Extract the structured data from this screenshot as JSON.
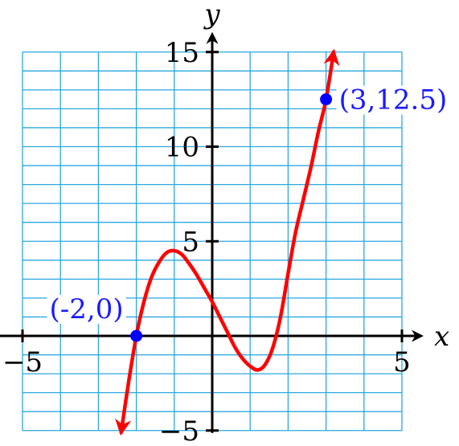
{
  "chart_data": {
    "type": "line",
    "xlabel": "x",
    "ylabel": "y",
    "xlim": [
      -5,
      5
    ],
    "ylim": [
      -5,
      15
    ],
    "x_tick_labels": [
      {
        "value": -5,
        "text": "−5"
      },
      {
        "value": 5,
        "text": "5"
      }
    ],
    "y_tick_labels": [
      {
        "value": -5,
        "text": "−5"
      },
      {
        "value": 5,
        "text": "5"
      },
      {
        "value": 10,
        "text": "10"
      },
      {
        "value": 15,
        "text": "15"
      }
    ],
    "grid": true,
    "grid_x_step": 1,
    "grid_y_step": 1,
    "curve": {
      "color": "#ff0000",
      "arrows": "both-ends",
      "x": [
        -2.4,
        -2.2,
        -2.0,
        -1.8,
        -1.6,
        -1.4,
        -1.2,
        -1.0,
        -0.8,
        -0.6,
        -0.4,
        -0.2,
        0.0,
        0.2,
        0.4,
        0.6,
        0.8,
        1.0,
        1.2,
        1.4,
        1.6,
        1.8,
        2.0,
        2.2,
        2.4,
        2.6,
        2.8,
        3.0,
        3.2
      ],
      "y": [
        -5.1,
        -2.4,
        0.0,
        1.8,
        3.1,
        3.9,
        4.4,
        4.5,
        4.3,
        3.8,
        3.2,
        2.5,
        1.8,
        1.0,
        0.2,
        -0.6,
        -1.2,
        -1.6,
        -1.8,
        -1.5,
        -0.6,
        1.0,
        3.3,
        5.5,
        7.2,
        8.9,
        10.8,
        12.5,
        15.0
      ]
    },
    "points": [
      {
        "x": -2,
        "y": 0,
        "label": "(-2,0)",
        "color": "#0000ff"
      },
      {
        "x": 3,
        "y": 12.5,
        "label": "(3,12.5)",
        "color": "#0000ff"
      }
    ]
  }
}
